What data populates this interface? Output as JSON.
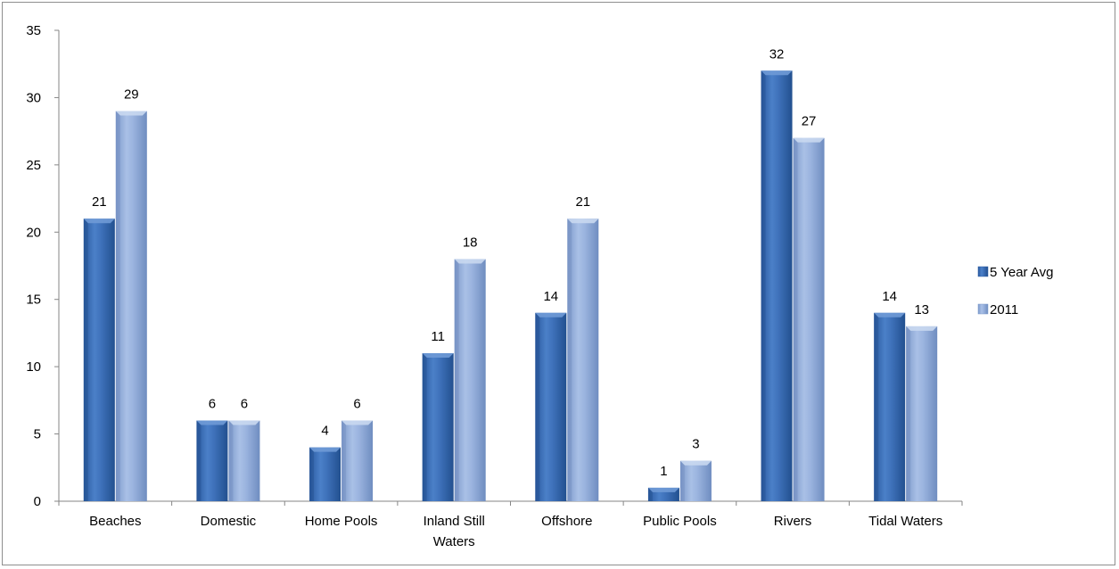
{
  "chart_data": {
    "type": "bar",
    "title": "",
    "xlabel": "",
    "ylabel": "",
    "ylim": [
      0,
      35
    ],
    "yticks": [
      0,
      5,
      10,
      15,
      20,
      25,
      30,
      35
    ],
    "categories": [
      [
        "Beaches"
      ],
      [
        "Domestic"
      ],
      [
        "Home Pools"
      ],
      [
        "Inland Still",
        "Waters"
      ],
      [
        "Offshore"
      ],
      [
        "Public Pools"
      ],
      [
        "Rivers"
      ],
      [
        "Tidal Waters"
      ]
    ],
    "series": [
      {
        "name": "5 Year Avg",
        "values": [
          21,
          6,
          4,
          11,
          14,
          1,
          32,
          14
        ],
        "color": "#3a6db3"
      },
      {
        "name": "2011",
        "values": [
          29,
          6,
          6,
          18,
          21,
          3,
          27,
          13
        ],
        "color": "#92addb"
      }
    ],
    "grid": false,
    "legend": "right",
    "data_labels": true
  }
}
